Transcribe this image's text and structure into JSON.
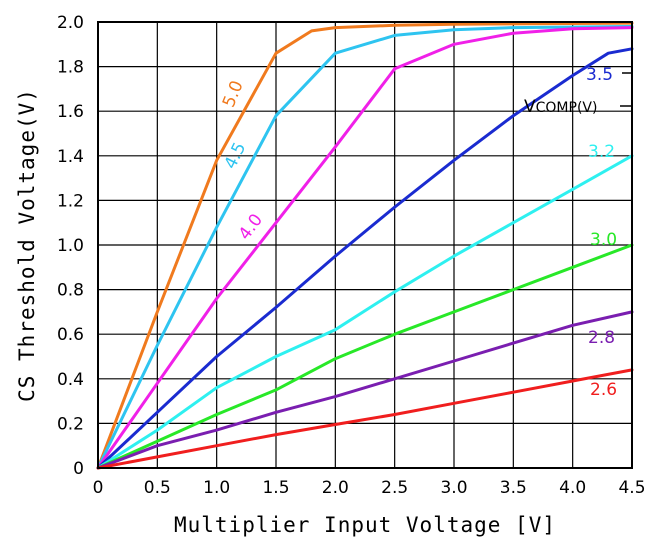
{
  "chart_data": {
    "type": "line",
    "xlabel": "Multiplier Input Voltage [V]",
    "ylabel": "CS Threshold Voltage(V)",
    "xlim": [
      0,
      4.5
    ],
    "ylim": [
      0,
      2.0
    ],
    "x_ticks": [
      "0",
      "0.5",
      "1.0",
      "1.5",
      "2.0",
      "2.5",
      "3.0",
      "3.5",
      "4.0",
      "4.5"
    ],
    "y_ticks": [
      "0",
      "0.2",
      "0.4",
      "0.6",
      "0.8",
      "1.0",
      "1.2",
      "1.4",
      "1.6",
      "1.8",
      "2.0"
    ],
    "grid": true,
    "legend_title": {
      "main": "V",
      "sub": "COMP(V)"
    },
    "series": [
      {
        "name": "5.0",
        "color": "#F07A1E",
        "points": [
          [
            0,
            0
          ],
          [
            0.5,
            0.7
          ],
          [
            1.0,
            1.38
          ],
          [
            1.5,
            1.86
          ],
          [
            1.8,
            1.96
          ],
          [
            2.0,
            1.975
          ],
          [
            2.5,
            1.985
          ],
          [
            3.0,
            1.99
          ],
          [
            4.5,
            1.995
          ]
        ]
      },
      {
        "name": "4.5",
        "color": "#2EC4F0",
        "points": [
          [
            0,
            0
          ],
          [
            0.5,
            0.55
          ],
          [
            1.0,
            1.08
          ],
          [
            1.5,
            1.58
          ],
          [
            2.0,
            1.86
          ],
          [
            2.5,
            1.94
          ],
          [
            3.0,
            1.965
          ],
          [
            3.5,
            1.975
          ],
          [
            4.5,
            1.98
          ]
        ]
      },
      {
        "name": "4.0",
        "color": "#F020E8",
        "points": [
          [
            0,
            0
          ],
          [
            0.5,
            0.38
          ],
          [
            1.0,
            0.76
          ],
          [
            1.5,
            1.1
          ],
          [
            2.0,
            1.44
          ],
          [
            2.5,
            1.79
          ],
          [
            3.0,
            1.9
          ],
          [
            3.5,
            1.95
          ],
          [
            4.0,
            1.97
          ],
          [
            4.5,
            1.975
          ]
        ]
      },
      {
        "name": "3.5",
        "color": "#1A2BD0",
        "points": [
          [
            0,
            0
          ],
          [
            0.5,
            0.25
          ],
          [
            1.0,
            0.5
          ],
          [
            1.5,
            0.72
          ],
          [
            2.0,
            0.95
          ],
          [
            2.5,
            1.17
          ],
          [
            3.0,
            1.38
          ],
          [
            3.5,
            1.58
          ],
          [
            4.0,
            1.76
          ],
          [
            4.3,
            1.86
          ],
          [
            4.5,
            1.88
          ]
        ]
      },
      {
        "name": "3.2",
        "color": "#2EF0F0",
        "points": [
          [
            0,
            0
          ],
          [
            0.5,
            0.17
          ],
          [
            1.0,
            0.36
          ],
          [
            1.5,
            0.5
          ],
          [
            2.0,
            0.62
          ],
          [
            2.5,
            0.79
          ],
          [
            3.0,
            0.95
          ],
          [
            3.5,
            1.1
          ],
          [
            4.0,
            1.25
          ],
          [
            4.5,
            1.4
          ]
        ]
      },
      {
        "name": "3.0",
        "color": "#28E828",
        "points": [
          [
            0,
            0
          ],
          [
            0.5,
            0.12
          ],
          [
            1.0,
            0.24
          ],
          [
            1.5,
            0.35
          ],
          [
            2.0,
            0.49
          ],
          [
            2.5,
            0.6
          ],
          [
            3.0,
            0.7
          ],
          [
            3.5,
            0.8
          ],
          [
            4.0,
            0.9
          ],
          [
            4.5,
            1.0
          ]
        ]
      },
      {
        "name": "2.8",
        "color": "#7A1EB0",
        "points": [
          [
            0,
            0
          ],
          [
            0.5,
            0.1
          ],
          [
            1.0,
            0.17
          ],
          [
            1.5,
            0.25
          ],
          [
            2.0,
            0.32
          ],
          [
            2.5,
            0.4
          ],
          [
            3.0,
            0.48
          ],
          [
            3.5,
            0.56
          ],
          [
            4.0,
            0.64
          ],
          [
            4.5,
            0.7
          ]
        ]
      },
      {
        "name": "2.6",
        "color": "#F01E1E",
        "points": [
          [
            0,
            0
          ],
          [
            0.5,
            0.05
          ],
          [
            1.0,
            0.1
          ],
          [
            1.5,
            0.15
          ],
          [
            2.0,
            0.195
          ],
          [
            2.5,
            0.24
          ],
          [
            3.0,
            0.29
          ],
          [
            3.5,
            0.34
          ],
          [
            4.0,
            0.39
          ],
          [
            4.5,
            0.44
          ]
        ]
      }
    ]
  }
}
